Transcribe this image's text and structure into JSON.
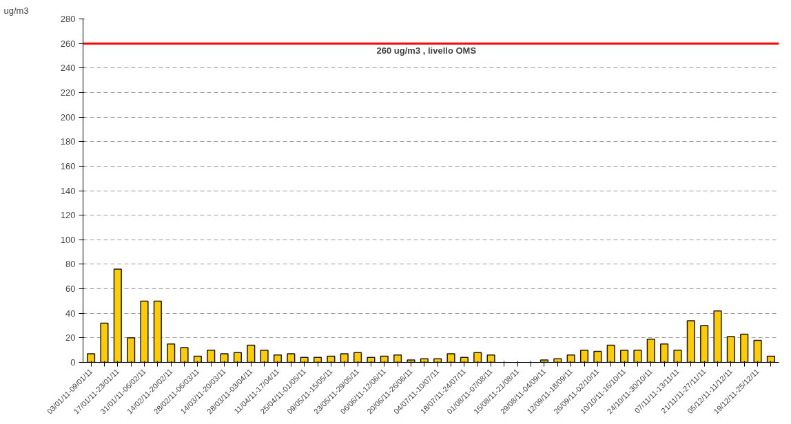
{
  "chart_data": {
    "type": "bar",
    "ylabel": "ug/m3",
    "categories": [
      "03/01/11-09/01/11",
      null,
      "17/01/11-23/01/11",
      null,
      "31/01/11-06/02/11",
      null,
      "14/02/11-20/02/11",
      null,
      "28/02/11-06/03/11",
      null,
      "14/03/11-20/03/11",
      null,
      "28/03/11-03/04/11",
      null,
      "11/04/11-17/04/11",
      null,
      "25/04/11-01/05/11",
      null,
      "09/05/11-15/05/11",
      null,
      "23/05/11-29/05/11",
      null,
      "06/06/11-12/06/11",
      null,
      "20/06/11-26/06/11",
      null,
      "04/07/11-10/07/11",
      null,
      "18/07/11-24/07/11",
      null,
      "01/08/11-07/08/11",
      null,
      "15/08/11-21/08/11",
      null,
      "29/08/11-04/09/11",
      null,
      "12/09/11-18/09/11",
      null,
      "26/09/11-02/10/11",
      null,
      "10/10/11-16/10/11",
      null,
      "24/10/11-30/10/11",
      null,
      "07/11/11-13/11/11",
      null,
      "21/11/11-27/11/11",
      null,
      "05/12/11-11/12/11",
      null,
      "19/12/11-25/12/11",
      null
    ],
    "values": [
      7,
      32,
      76,
      20,
      50,
      50,
      15,
      12,
      5,
      10,
      7,
      8,
      14,
      10,
      6,
      7,
      4,
      4,
      5,
      7,
      8,
      4,
      5,
      6,
      2,
      3,
      3,
      7,
      4,
      8,
      6,
      null,
      null,
      null,
      2,
      3,
      6,
      10,
      9,
      14,
      10,
      10,
      19,
      15,
      10,
      34,
      30,
      42,
      21,
      23,
      18,
      5
    ],
    "color": "#ffcc00",
    "ylim": [
      0,
      280
    ],
    "yticks": [
      0,
      20,
      40,
      60,
      80,
      100,
      120,
      140,
      160,
      180,
      200,
      220,
      240,
      260,
      280
    ],
    "grid": "y",
    "ref_lines": [
      {
        "axis": "y",
        "value": 260,
        "label": "260 ug/m3 , livello OMS",
        "color": "#ff0000",
        "line_style": "solid"
      }
    ]
  }
}
